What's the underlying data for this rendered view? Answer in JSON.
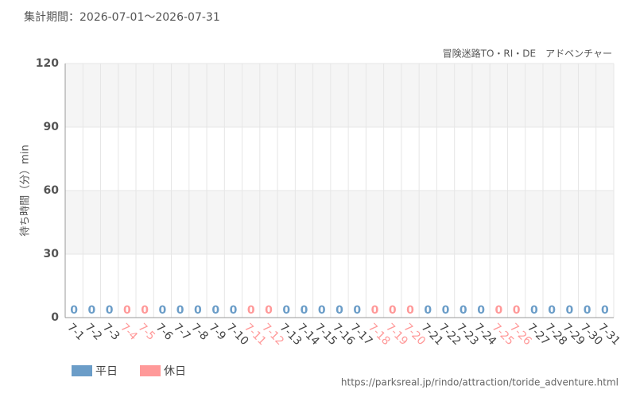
{
  "chart_data": {
    "type": "bar",
    "title": "集計期間：2026-07-01～2026-07-31",
    "subtitle": "冒険迷路TO・RI・DE　アドベンチャー",
    "y_label": "待ち時間（分）min",
    "source": "https://parksreal.jp/rindo/attraction/toride_adventure.html",
    "categories": [
      "7-1",
      "7-2",
      "7-3",
      "7-4",
      "7-5",
      "7-6",
      "7-7",
      "7-8",
      "7-9",
      "7-10",
      "7-11",
      "7-12",
      "7-13",
      "7-14",
      "7-15",
      "7-16",
      "7-17",
      "7-18",
      "7-19",
      "7-20",
      "7-21",
      "7-22",
      "7-23",
      "7-24",
      "7-25",
      "7-26",
      "7-27",
      "7-28",
      "7-29",
      "7-30",
      "7-31"
    ],
    "series": [
      {
        "name": "平日",
        "color": "#6b9dc8",
        "values": [
          0,
          0,
          0,
          null,
          null,
          0,
          0,
          0,
          0,
          0,
          null,
          null,
          0,
          0,
          0,
          0,
          0,
          null,
          null,
          null,
          0,
          0,
          0,
          0,
          null,
          null,
          0,
          0,
          0,
          0,
          0
        ]
      },
      {
        "name": "休日",
        "color": "#ff9999",
        "values": [
          null,
          null,
          null,
          0,
          0,
          null,
          null,
          null,
          null,
          null,
          0,
          0,
          null,
          null,
          null,
          null,
          null,
          0,
          0,
          0,
          null,
          null,
          null,
          null,
          0,
          0,
          null,
          null,
          null,
          null,
          null
        ]
      }
    ],
    "ylim": [
      0,
      120
    ],
    "yticks": [
      0,
      30,
      60,
      90,
      120
    ],
    "grid": true,
    "legend": "bottom-left"
  }
}
